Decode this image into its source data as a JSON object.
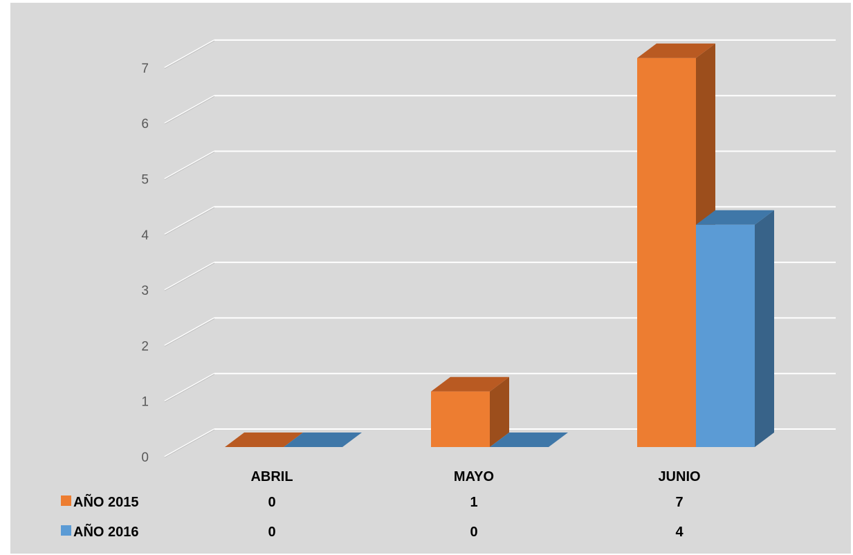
{
  "chart_data": {
    "type": "bar",
    "categories": [
      "ABRIL",
      "MAYO",
      "JUNIO"
    ],
    "series": [
      {
        "name": "AÑO  2015",
        "values": [
          0,
          1,
          7
        ],
        "color": "#ED7D31",
        "side_color": "#9C4E1C",
        "top_color": "#B95A22"
      },
      {
        "name": "AÑO 2016",
        "values": [
          0,
          0,
          4
        ],
        "color": "#5B9BD5",
        "side_color": "#386389",
        "top_color": "#3F77A8"
      }
    ],
    "y_ticks": [
      "0",
      "1",
      "2",
      "3",
      "4",
      "5",
      "6",
      "7"
    ],
    "ylim": [
      0,
      7
    ],
    "grid": true,
    "legend": "data-table",
    "background": "#D9D9D9",
    "gridline_color": "#ffffff"
  }
}
